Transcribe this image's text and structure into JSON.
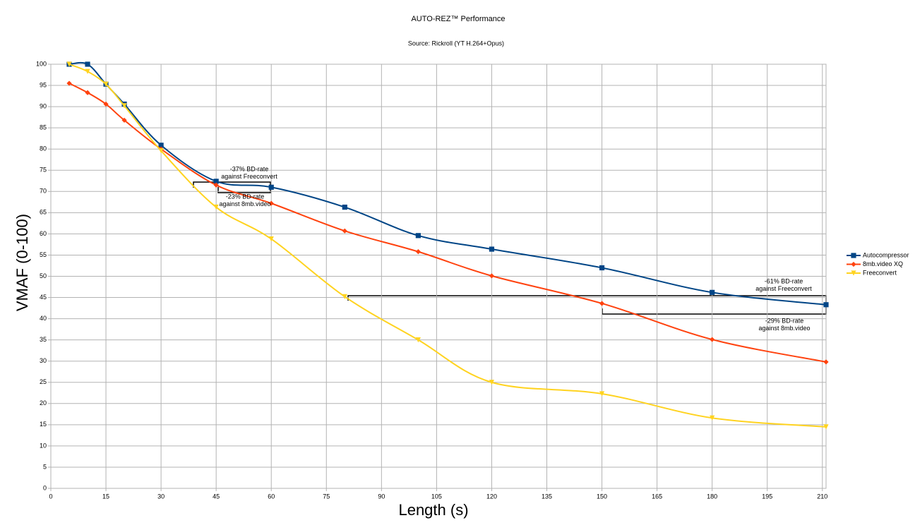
{
  "chart_data": {
    "type": "line",
    "title": "AUTO-REZ™ Performance",
    "subtitle": "Source: Rickroll (YT H.264+Opus)",
    "x_label": "Length (s)",
    "y_label": "VMAF (0-100)",
    "x": [
      5,
      10,
      15,
      20,
      30,
      45,
      60,
      80,
      100,
      120,
      150,
      180,
      211
    ],
    "series": [
      {
        "name": "Autocompressor",
        "color": "#004586",
        "marker": "square",
        "values": [
          100,
          100,
          95.3,
          90.6,
          80.9,
          72.4,
          71,
          66.3,
          59.6,
          56.4,
          52,
          46.2,
          43.3
        ]
      },
      {
        "name": "8mb.video XQ",
        "color": "#ff420e",
        "marker": "diamond",
        "values": [
          95.5,
          93.3,
          90.6,
          86.8,
          80,
          71.5,
          67.2,
          60.7,
          55.8,
          50.1,
          43.6,
          35.1,
          29.8
        ]
      },
      {
        "name": "Freeconvert",
        "color": "#ffd320",
        "marker": "triangle",
        "values": [
          100,
          98.3,
          95.3,
          90.2,
          79.6,
          66.3,
          58.8,
          45.2,
          35,
          25,
          22.3,
          16.6,
          14.5
        ]
      }
    ],
    "xlim": [
      0,
      211
    ],
    "xticks": [
      0,
      15,
      30,
      45,
      60,
      75,
      90,
      105,
      120,
      135,
      150,
      165,
      180,
      195,
      210
    ],
    "ylim": [
      0,
      100
    ],
    "yticks": [
      0,
      5,
      10,
      15,
      20,
      25,
      30,
      35,
      40,
      45,
      50,
      55,
      60,
      65,
      70,
      75,
      80,
      85,
      90,
      95,
      100
    ],
    "grid": true,
    "legend": "right",
    "annotations": [
      {
        "lines": [
          "-37% BD-rate",
          "against Freeconvert"
        ]
      },
      {
        "lines": [
          "-23% BD-rate",
          "against 8mb.video"
        ]
      },
      {
        "lines": [
          "-61% BD-rate",
          "against Freeconvert"
        ]
      },
      {
        "lines": [
          "-29% BD-rate",
          "against 8mb.video"
        ]
      }
    ]
  }
}
